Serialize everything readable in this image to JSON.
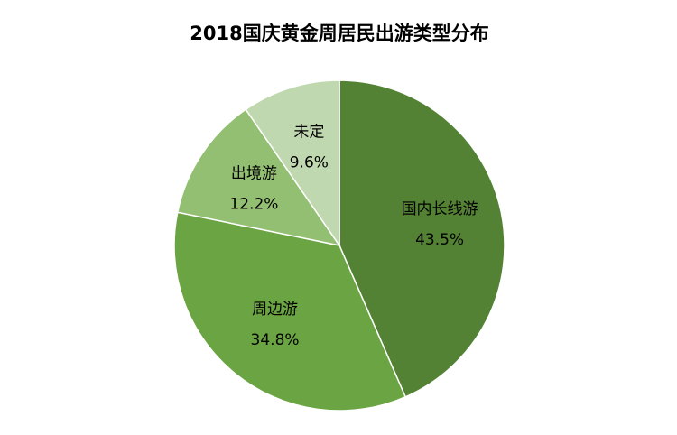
{
  "chart_data": {
    "type": "pie",
    "title": "2018国庆黄金周居民出游类型分布",
    "categories": [
      "国内长线游",
      "周边游",
      "出境游",
      "未定"
    ],
    "values": [
      43.5,
      34.8,
      12.2,
      9.6
    ],
    "value_labels": [
      "43.5%",
      "34.8%",
      "12.2%",
      "9.6%"
    ],
    "colors": [
      "#548235",
      "#6ba443",
      "#93bf72",
      "#c0d8b0"
    ]
  }
}
